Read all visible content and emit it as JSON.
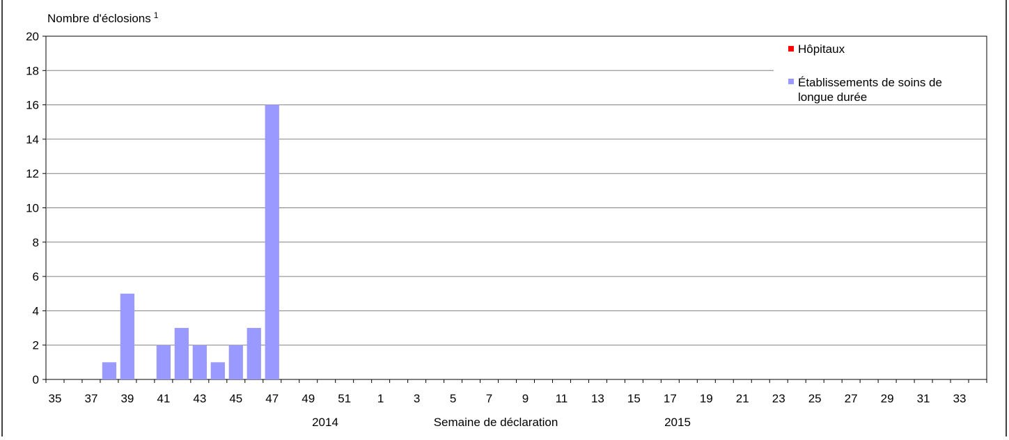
{
  "chart_data": {
    "type": "bar",
    "ylabel": "Nombre d'éclosions",
    "ylabel_superscript": "1",
    "xlabel": "Semaine de déclaration",
    "year_labels": [
      "2014",
      "2015"
    ],
    "ylim": [
      0,
      20
    ],
    "yticks": [
      "0",
      "2",
      "4",
      "6",
      "8",
      "10",
      "12",
      "14",
      "16",
      "18",
      "20"
    ],
    "grid": true,
    "legend_position": "top-right",
    "categories": [
      "35",
      "36",
      "37",
      "38",
      "39",
      "40",
      "41",
      "42",
      "43",
      "44",
      "45",
      "46",
      "47",
      "48",
      "49",
      "50",
      "51",
      "52",
      "1",
      "2",
      "3",
      "4",
      "5",
      "6",
      "7",
      "8",
      "9",
      "10",
      "11",
      "12",
      "13",
      "14",
      "15",
      "16",
      "17",
      "18",
      "19",
      "20",
      "21",
      "22",
      "23",
      "24",
      "25",
      "26",
      "27",
      "28",
      "29",
      "30",
      "31",
      "32",
      "33",
      "34"
    ],
    "series": [
      {
        "name": "Hôpitaux",
        "color": "#ff0000",
        "values": [
          0,
          0,
          0,
          0,
          0,
          0,
          0,
          0,
          0,
          0,
          0,
          0,
          0,
          0,
          0,
          0,
          0,
          0,
          0,
          0,
          0,
          0,
          0,
          0,
          0,
          0,
          0,
          0,
          0,
          0,
          0,
          0,
          0,
          0,
          0,
          0,
          0,
          0,
          0,
          0,
          0,
          0,
          0,
          0,
          0,
          0,
          0,
          0,
          0,
          0,
          0,
          0
        ]
      },
      {
        "name": "Établissements de soins de longue durée",
        "color": "#9999ff",
        "values": [
          0,
          0,
          0,
          1,
          5,
          0,
          2,
          3,
          2,
          1,
          2,
          3,
          16,
          0,
          0,
          0,
          0,
          0,
          0,
          0,
          0,
          0,
          0,
          0,
          0,
          0,
          0,
          0,
          0,
          0,
          0,
          0,
          0,
          0,
          0,
          0,
          0,
          0,
          0,
          0,
          0,
          0,
          0,
          0,
          0,
          0,
          0,
          0,
          0,
          0,
          0,
          0
        ]
      }
    ]
  }
}
